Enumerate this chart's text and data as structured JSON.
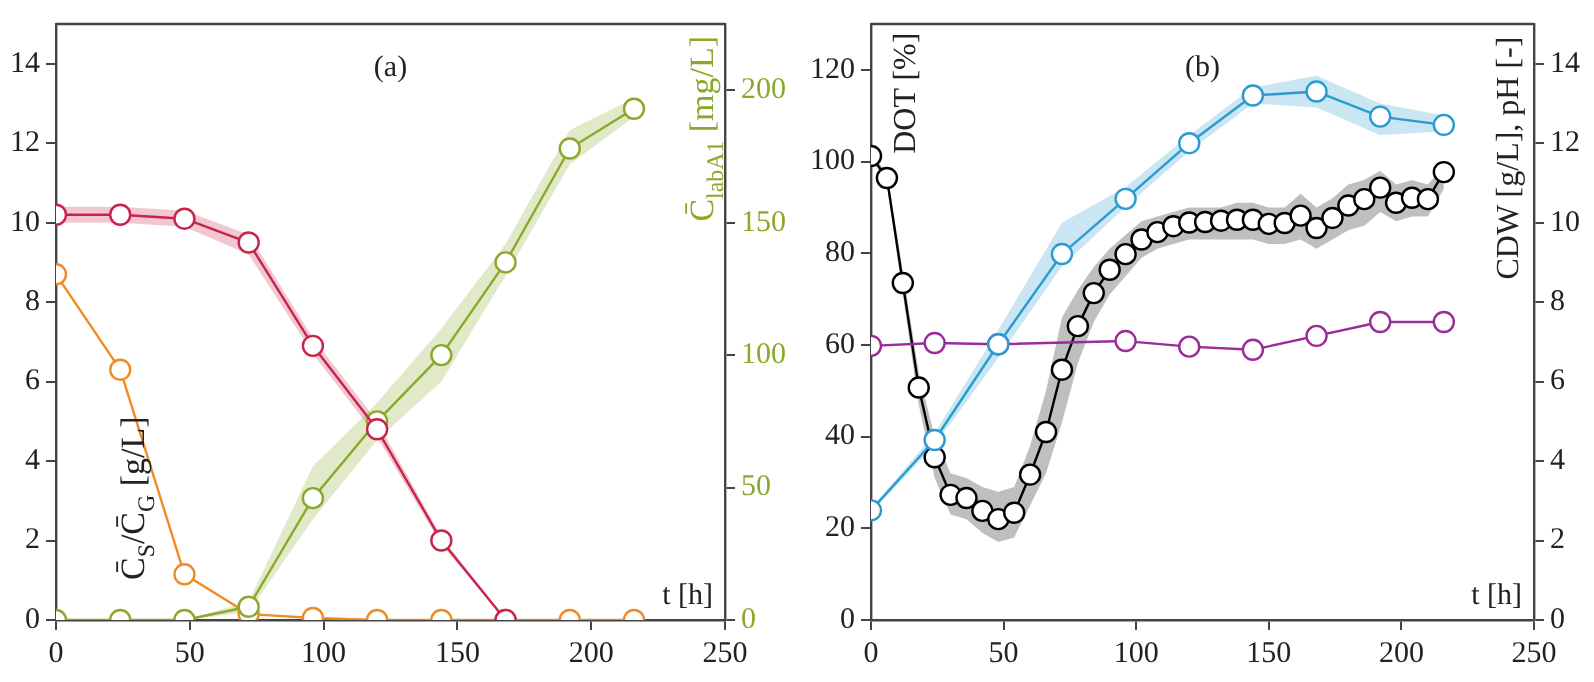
{
  "chart_data": [
    {
      "type": "line",
      "title": "(a)",
      "xlabel": "t [h]",
      "ylabel": "C̄$_{S}$/C̄$_{G}$ [g/L]",
      "y2label": "C̄$_{labA1}$ [mg/L]",
      "x": [
        0,
        24,
        48,
        72,
        96,
        120,
        144,
        168,
        192,
        216
      ],
      "xlim": [
        0,
        250
      ],
      "xticks": [
        0,
        50,
        100,
        150,
        200,
        250
      ],
      "ylim": [
        0,
        15
      ],
      "yticks": [
        0,
        2,
        4,
        6,
        8,
        10,
        12,
        14
      ],
      "y2lim": [
        0,
        225
      ],
      "y2ticks": [
        0,
        50,
        100,
        150,
        200
      ],
      "grid": false,
      "legend": false,
      "marker": "circle",
      "line_style": "solid",
      "series": [
        {
          "color": "#c8234a",
          "values": [
            10.2,
            10.2,
            10.1,
            9.5,
            6.9,
            4.8,
            2.0,
            0,
            null,
            null
          ],
          "lower": [
            10.0,
            10.0,
            9.9,
            9.2,
            6.7,
            4.6,
            1.9,
            0,
            null,
            null
          ],
          "upper": [
            10.4,
            10.4,
            10.3,
            9.7,
            7.1,
            5.0,
            2.1,
            0,
            null,
            null
          ]
        },
        {
          "color": "#8aa829",
          "axis": "y2",
          "values": [
            0,
            0,
            0,
            5,
            46,
            75,
            100,
            135,
            178,
            193
          ],
          "lower": [
            0,
            0,
            0,
            3,
            38,
            68,
            90,
            130,
            172,
            190
          ],
          "upper": [
            0,
            0,
            0,
            7,
            58,
            82,
            110,
            142,
            185,
            197
          ]
        },
        {
          "color": "#f08a24",
          "values": [
            8.7,
            6.3,
            1.15,
            0.15,
            0.05,
            0,
            0,
            0,
            0,
            0
          ]
        }
      ]
    },
    {
      "type": "line",
      "title": "(b)",
      "xlabel": "t [h]",
      "ylabel": "DOT [%]",
      "y2label": "CDW [g/L], pH [-]",
      "xlim": [
        0,
        250
      ],
      "xticks": [
        0,
        50,
        100,
        150,
        200,
        250
      ],
      "ylim": [
        0,
        130
      ],
      "yticks": [
        0,
        20,
        40,
        60,
        80,
        100,
        120
      ],
      "y2lim": [
        0,
        15
      ],
      "y2ticks": [
        0,
        2,
        4,
        6,
        8,
        10,
        12,
        14
      ],
      "grid": false,
      "legend": false,
      "marker": "circle",
      "line_style": "solid",
      "series": [
        {
          "color": "#2a9bd0",
          "axis": "y2",
          "x": [
            0,
            24,
            48,
            72,
            96,
            120,
            144,
            168,
            192,
            216
          ],
          "values": [
            2.76,
            4.53,
            6.94,
            9.21,
            10.6,
            12.0,
            13.2,
            13.3,
            12.67,
            12.46
          ],
          "lower": [
            2.7,
            4.4,
            6.6,
            8.9,
            10.4,
            11.8,
            13.0,
            12.9,
            12.2,
            12.3
          ],
          "upper": [
            2.8,
            4.7,
            7.3,
            10.0,
            10.9,
            12.2,
            13.4,
            13.7,
            13.0,
            12.7
          ]
        },
        {
          "color": "#9b2a9b",
          "axis": "y2",
          "x": [
            0,
            24,
            48,
            96,
            120,
            144,
            168,
            192,
            216
          ],
          "values": [
            6.9,
            6.97,
            6.94,
            7.02,
            6.88,
            6.8,
            7.15,
            7.5,
            7.5
          ]
        },
        {
          "color": "#000000",
          "x": [
            0,
            6,
            12,
            18,
            24,
            30,
            36,
            42,
            48,
            54,
            60,
            66,
            72,
            78,
            84,
            90,
            96,
            102,
            108,
            114,
            120,
            126,
            132,
            138,
            144,
            150,
            156,
            162,
            168,
            174,
            180,
            186,
            192,
            198,
            204,
            210,
            216
          ],
          "values": [
            101.2,
            96.4,
            73.5,
            50.7,
            35.5,
            27.3,
            26.6,
            23.8,
            22.0,
            23.4,
            31.7,
            41.0,
            54.6,
            64.1,
            71.3,
            76.4,
            79.8,
            83.0,
            84.6,
            85.9,
            86.7,
            86.8,
            87.1,
            87.3,
            87.3,
            86.4,
            86.6,
            88.2,
            85.5,
            87.7,
            90.4,
            91.8,
            94.3,
            91.0,
            92.1,
            91.8,
            97.7
          ],
          "lower": [
            101,
            95,
            71,
            47,
            31,
            23,
            22,
            19,
            17,
            18,
            25,
            32,
            43,
            56,
            65,
            71,
            75,
            79,
            81,
            82,
            83,
            83,
            83,
            83,
            83,
            82,
            82,
            83,
            81,
            83,
            85,
            86,
            89,
            87,
            88,
            88,
            94
          ],
          "upper": [
            101,
            98,
            76,
            54,
            40,
            32,
            31,
            29,
            28,
            29,
            38,
            50,
            66,
            72,
            77,
            81,
            84,
            87,
            88,
            89,
            90,
            90,
            90,
            91,
            91,
            90,
            90,
            93,
            90,
            92,
            95,
            96,
            98,
            95,
            96,
            95,
            99
          ]
        }
      ]
    }
  ]
}
